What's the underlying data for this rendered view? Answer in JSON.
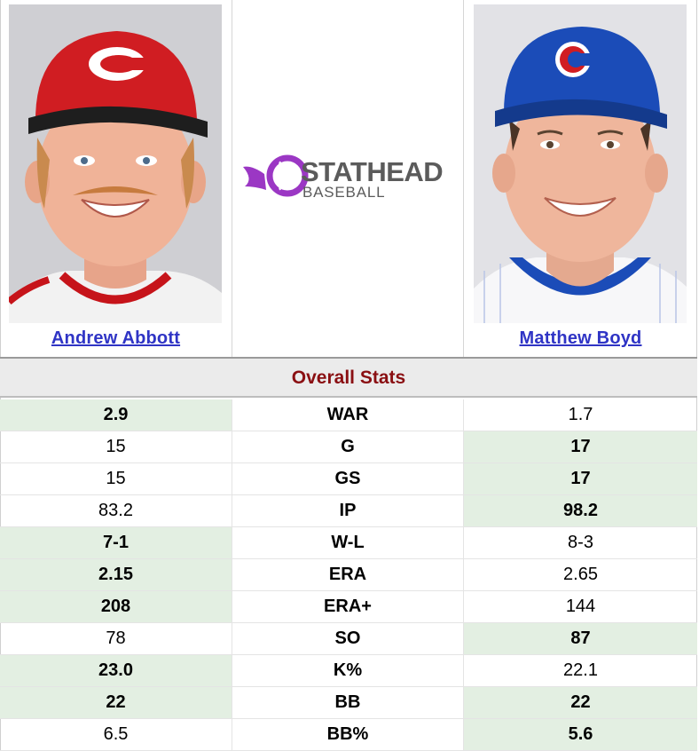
{
  "players": {
    "left": {
      "name": "Andrew Abbott",
      "team_color": "#c6141a"
    },
    "right": {
      "name": "Matthew Boyd",
      "team_color": "#1b4cb8"
    }
  },
  "logo": {
    "brand": "STATHEAD",
    "sub": "BASEBALL",
    "accent_color": "#9b37c4",
    "text_color": "#5b5b5b"
  },
  "section_title": "Overall Stats",
  "stats": [
    {
      "label": "WAR",
      "left": "2.9",
      "right": "1.7",
      "winner": "left"
    },
    {
      "label": "G",
      "left": "15",
      "right": "17",
      "winner": "right"
    },
    {
      "label": "GS",
      "left": "15",
      "right": "17",
      "winner": "right"
    },
    {
      "label": "IP",
      "left": "83.2",
      "right": "98.2",
      "winner": "right"
    },
    {
      "label": "W-L",
      "left": "7-1",
      "right": "8-3",
      "winner": "left"
    },
    {
      "label": "ERA",
      "left": "2.15",
      "right": "2.65",
      "winner": "left"
    },
    {
      "label": "ERA+",
      "left": "208",
      "right": "144",
      "winner": "left"
    },
    {
      "label": "SO",
      "left": "78",
      "right": "87",
      "winner": "right"
    },
    {
      "label": "K%",
      "left": "23.0",
      "right": "22.1",
      "winner": "left"
    },
    {
      "label": "BB",
      "left": "22",
      "right": "22",
      "winner": "both"
    },
    {
      "label": "BB%",
      "left": "6.5",
      "right": "5.6",
      "winner": "right"
    }
  ]
}
